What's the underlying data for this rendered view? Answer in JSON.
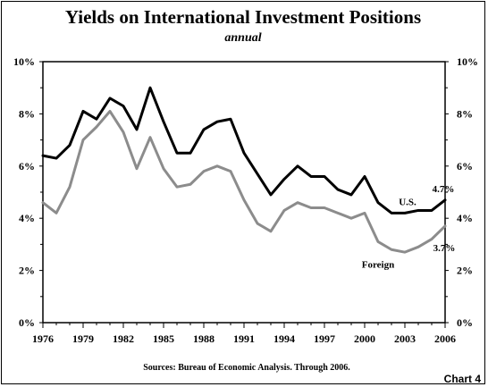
{
  "chart_data": {
    "type": "line",
    "title": "Yields on International Investment Positions",
    "subtitle": "annual",
    "source": "Sources: Bureau of Economic Analysis.  Through 2006.",
    "chart_number": "Chart 4",
    "xlim": [
      1976,
      2006
    ],
    "ylim": [
      0,
      10
    ],
    "x_ticks": [
      "1976",
      "1979",
      "1982",
      "1985",
      "1988",
      "1991",
      "1994",
      "1997",
      "2000",
      "2003",
      "2006"
    ],
    "y_ticks": [
      "0%",
      "2%",
      "4%",
      "6%",
      "8%",
      "10%"
    ],
    "grid": false,
    "x": [
      1976,
      1977,
      1978,
      1979,
      1980,
      1981,
      1982,
      1983,
      1984,
      1985,
      1986,
      1987,
      1988,
      1989,
      1990,
      1991,
      1992,
      1993,
      1994,
      1995,
      1996,
      1997,
      1998,
      1999,
      2000,
      2001,
      2002,
      2003,
      2004,
      2005,
      2006
    ],
    "series": [
      {
        "name": "U.S.",
        "color": "#000000",
        "values": [
          6.4,
          6.3,
          6.8,
          8.1,
          7.8,
          8.6,
          8.3,
          7.4,
          9.0,
          7.7,
          6.5,
          6.5,
          7.4,
          7.7,
          7.8,
          6.5,
          5.7,
          4.9,
          5.5,
          6.0,
          5.6,
          5.6,
          5.1,
          4.9,
          5.6,
          4.6,
          4.2,
          4.2,
          4.3,
          4.3,
          4.7
        ]
      },
      {
        "name": "Foreign",
        "color": "#8c8c8c",
        "values": [
          4.6,
          4.2,
          5.2,
          7.0,
          7.5,
          8.1,
          7.3,
          5.9,
          7.1,
          5.9,
          5.2,
          5.3,
          5.8,
          6.0,
          5.8,
          4.7,
          3.8,
          3.5,
          4.3,
          4.6,
          4.4,
          4.4,
          4.2,
          4.0,
          4.2,
          3.1,
          2.8,
          2.7,
          2.9,
          3.2,
          3.7
        ]
      }
    ],
    "annotations": [
      {
        "text": "4.7%",
        "series": "U.S."
      },
      {
        "text": "3.7%",
        "series": "Foreign"
      }
    ]
  }
}
